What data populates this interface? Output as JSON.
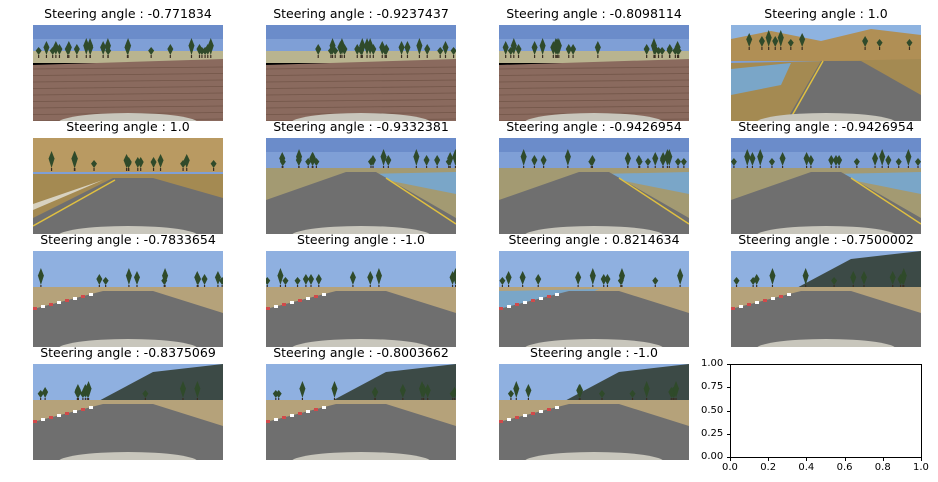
{
  "panels": [
    {
      "title": "Steering angle : -0.771834",
      "scene": "brick"
    },
    {
      "title": "Steering angle : -0.9237437",
      "scene": "brick"
    },
    {
      "title": "Steering angle : -0.8098114",
      "scene": "brick"
    },
    {
      "title": "Steering angle : 1.0",
      "scene": "lake-curve"
    },
    {
      "title": "Steering angle : 1.0",
      "scene": "forest-road"
    },
    {
      "title": "Steering angle : -0.9332381",
      "scene": "lake-road"
    },
    {
      "title": "Steering angle : -0.9426954",
      "scene": "lake-road"
    },
    {
      "title": "Steering angle : -0.9426954",
      "scene": "lake-road"
    },
    {
      "title": "Steering angle : -0.7833654",
      "scene": "kerb-road"
    },
    {
      "title": "Steering angle : -1.0",
      "scene": "kerb-road"
    },
    {
      "title": "Steering angle : 0.8214634",
      "scene": "kerb-lake"
    },
    {
      "title": "Steering angle : -0.7500002",
      "scene": "kerb-hill"
    },
    {
      "title": "Steering angle : -0.8375069",
      "scene": "kerb-hill"
    },
    {
      "title": "Steering angle : -0.8003662",
      "scene": "kerb-hill"
    },
    {
      "title": "Steering angle : -1.0",
      "scene": "kerb-hill"
    }
  ],
  "empty_axes": {
    "x_ticks": [
      "0.0",
      "0.2",
      "0.4",
      "0.6",
      "0.8",
      "1.0"
    ],
    "y_ticks": [
      "0.00",
      "0.25",
      "0.50",
      "0.75",
      "1.00"
    ]
  },
  "colors": {
    "sky": "#7f9fd6",
    "brick": "#8a6a5e",
    "asphalt": "#6f6f6f",
    "grass": "#a48a52",
    "water": "#7aa6c8",
    "kerb_red": "#d04a4a"
  }
}
